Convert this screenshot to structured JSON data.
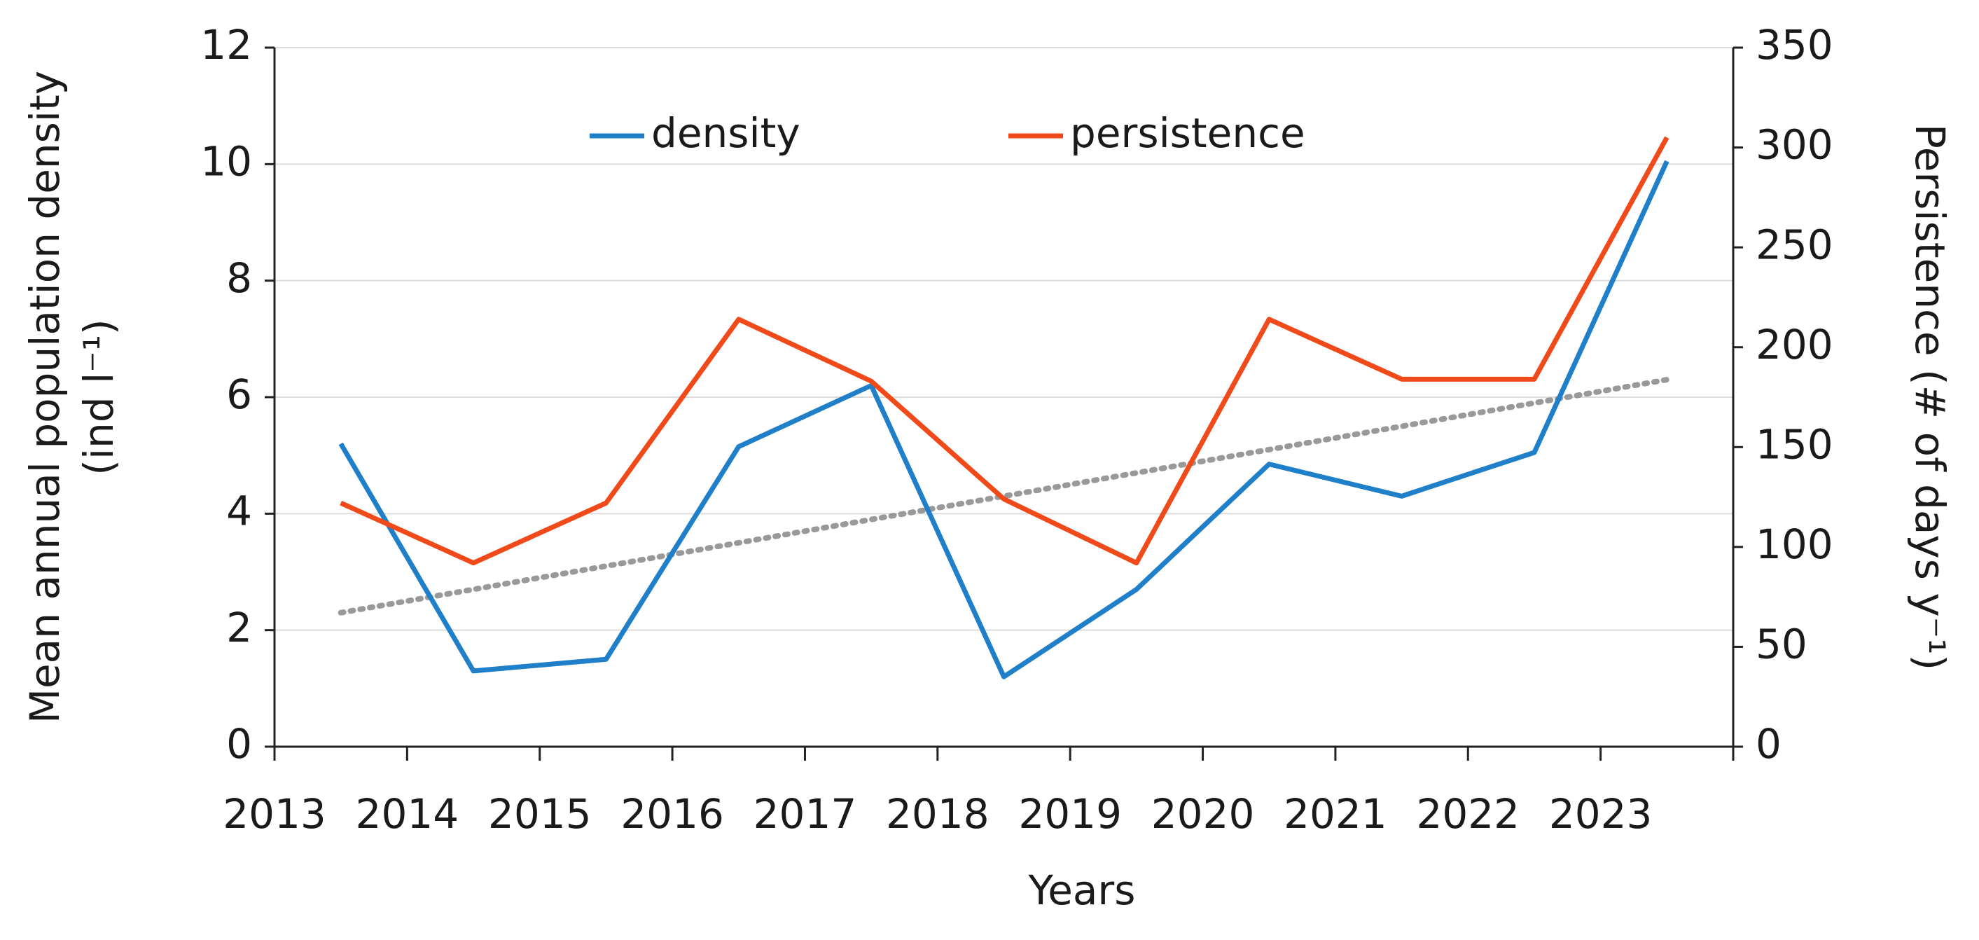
{
  "chart_data": {
    "type": "line",
    "categories": [
      "2013",
      "2014",
      "2015",
      "2016",
      "2017",
      "2018",
      "2019",
      "2020",
      "2021",
      "2022",
      "2023"
    ],
    "series": [
      {
        "name": "density",
        "color": "#1f7fc8",
        "values": [
          5.2,
          1.3,
          1.5,
          5.15,
          6.2,
          1.2,
          2.7,
          4.85,
          4.3,
          5.05,
          10.05
        ]
      },
      {
        "name": "persistence",
        "color": "#f04a1a",
        "axis": "y2",
        "values": [
          122,
          92,
          122,
          214,
          183,
          124,
          92,
          214,
          184,
          184,
          305
        ]
      }
    ],
    "trend": {
      "color": "#999999",
      "values": [
        2.3,
        6.3
      ]
    },
    "xlabel": "Years",
    "ylabel": [
      "Mean annual population density",
      "(ind l⁻¹)"
    ],
    "y2label": "Persistence (# of days y⁻¹)",
    "ylim": [
      0,
      12
    ],
    "yticks": [
      0,
      2,
      4,
      6,
      8,
      10,
      12
    ],
    "y2lim": [
      0,
      350
    ],
    "y2ticks": [
      0,
      50,
      100,
      150,
      200,
      250,
      300,
      350
    ],
    "grid": true
  }
}
